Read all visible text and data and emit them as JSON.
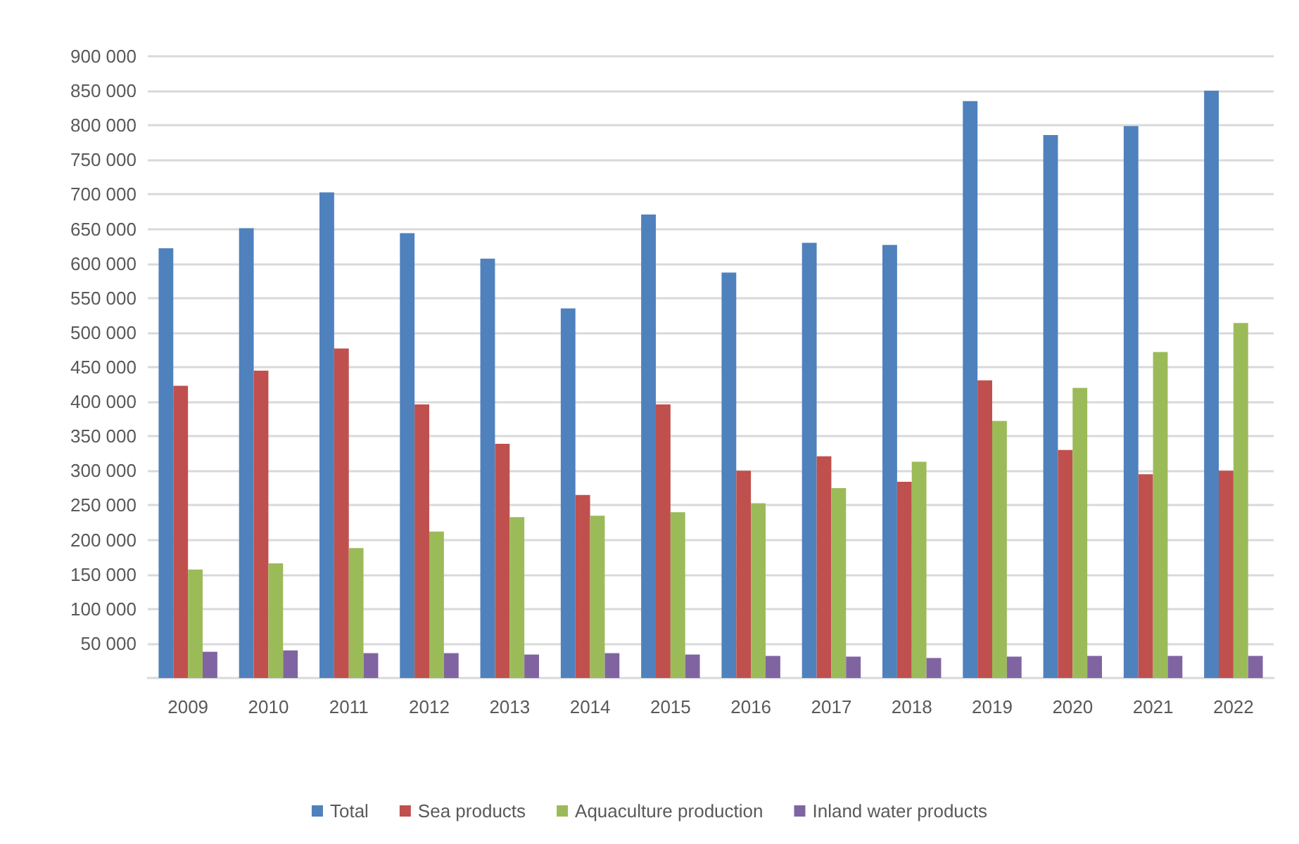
{
  "chart_data": {
    "type": "bar",
    "categories": [
      "2009",
      "2010",
      "2011",
      "2012",
      "2013",
      "2014",
      "2015",
      "2016",
      "2017",
      "2018",
      "2019",
      "2020",
      "2021",
      "2022"
    ],
    "series": [
      {
        "name": "Total",
        "color": "#4f81bd",
        "values": [
          622000,
          651000,
          703000,
          644000,
          607000,
          535000,
          671000,
          587000,
          630000,
          627000,
          835000,
          786000,
          799000,
          850000
        ]
      },
      {
        "name": "Sea products",
        "color": "#c0504d",
        "values": [
          423000,
          445000,
          477000,
          396000,
          339000,
          265000,
          396000,
          300000,
          321000,
          284000,
          431000,
          330000,
          295000,
          300000
        ]
      },
      {
        "name": "Aquaculture production",
        "color": "#9bbb59",
        "values": [
          157000,
          166000,
          188000,
          212000,
          233000,
          235000,
          240000,
          253000,
          275000,
          313000,
          372000,
          420000,
          472000,
          514000
        ]
      },
      {
        "name": "Inland water products",
        "color": "#8064a2",
        "values": [
          38000,
          40000,
          36000,
          36000,
          34000,
          36000,
          34000,
          32000,
          31000,
          29000,
          31000,
          32000,
          32000,
          32000
        ]
      }
    ],
    "ylim": [
      0,
      900000
    ],
    "yticks": [
      {
        "value": 50000,
        "label": "50 000"
      },
      {
        "value": 100000,
        "label": "100 000"
      },
      {
        "value": 150000,
        "label": "150 000"
      },
      {
        "value": 200000,
        "label": "200 000"
      },
      {
        "value": 250000,
        "label": "250 000"
      },
      {
        "value": 300000,
        "label": "300 000"
      },
      {
        "value": 350000,
        "label": "350 000"
      },
      {
        "value": 400000,
        "label": "400 000"
      },
      {
        "value": 450000,
        "label": "450 000"
      },
      {
        "value": 500000,
        "label": "500 000"
      },
      {
        "value": 550000,
        "label": "550 000"
      },
      {
        "value": 600000,
        "label": "600 000"
      },
      {
        "value": 650000,
        "label": "650 000"
      },
      {
        "value": 700000,
        "label": "700 000"
      },
      {
        "value": 750000,
        "label": "750 000"
      },
      {
        "value": 800000,
        "label": "800 000"
      },
      {
        "value": 850000,
        "label": "850 000"
      },
      {
        "value": 900000,
        "label": "900 000"
      }
    ],
    "grid": "y",
    "legend": "bottom"
  }
}
